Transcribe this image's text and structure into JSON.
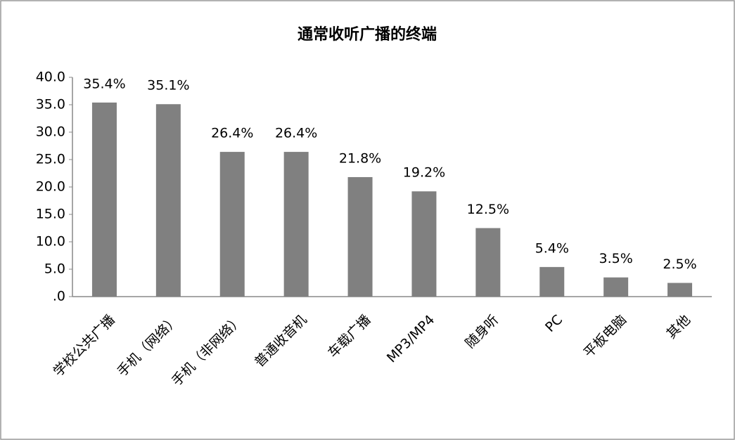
{
  "chart_data": {
    "type": "bar",
    "title": "通常收听广播的终端",
    "categories": [
      "学校公共广播",
      "手机（网络）",
      "手机（非网络）",
      "普通收音机",
      "车载广播",
      "MP3/MP4",
      "随身听",
      "PC",
      "平板电脑",
      "其他"
    ],
    "values": [
      35.4,
      35.1,
      26.4,
      26.4,
      21.8,
      19.2,
      12.5,
      5.4,
      3.5,
      2.5
    ],
    "value_labels": [
      "35.4%",
      "35.1%",
      "26.4%",
      "26.4%",
      "21.8%",
      "19.2%",
      "12.5%",
      "5.4%",
      "3.5%",
      "2.5%"
    ],
    "color": "#808080",
    "ylim": [
      0,
      40
    ],
    "yticks": [
      {
        "value": 0,
        "label": ".0"
      },
      {
        "value": 5,
        "label": "5.0"
      },
      {
        "value": 10,
        "label": "10.0"
      },
      {
        "value": 15,
        "label": "15.0"
      },
      {
        "value": 20,
        "label": "20.0"
      },
      {
        "value": 25,
        "label": "25.0"
      },
      {
        "value": 30,
        "label": "30.0"
      },
      {
        "value": 35,
        "label": "35.0"
      },
      {
        "value": 40,
        "label": "40.0"
      }
    ],
    "grid": false
  }
}
